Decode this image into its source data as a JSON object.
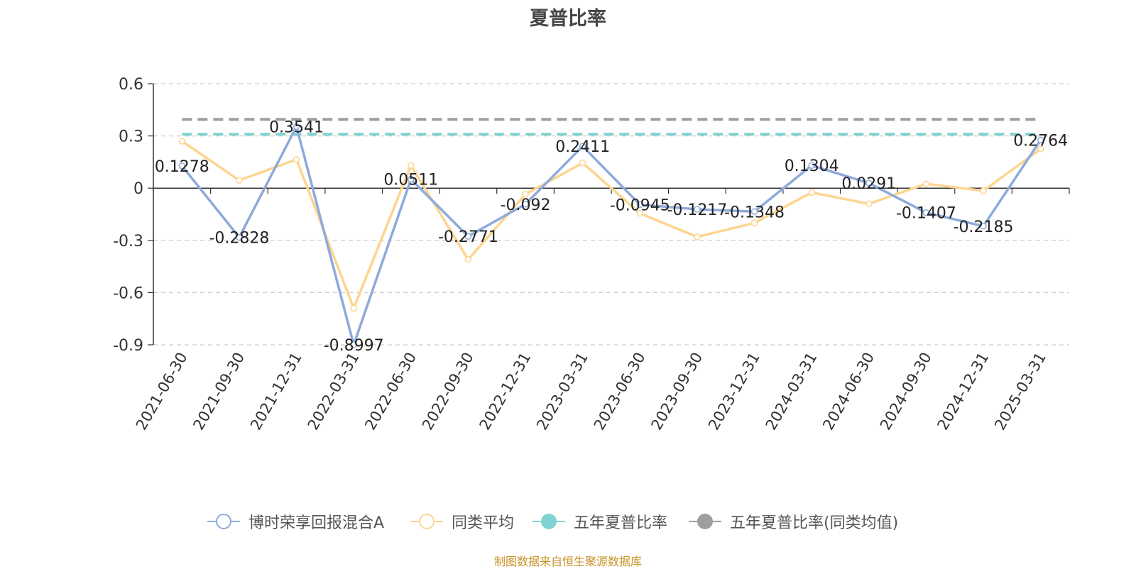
{
  "title": "夏普比率",
  "source": "制图数据来自恒生聚源数据库",
  "legend": [
    {
      "label": "博时荣享回报混合A",
      "color": "#8eaadb",
      "marker": "hollow-circle"
    },
    {
      "label": "同类平均",
      "color": "#fdd58f",
      "marker": "hollow-circle"
    },
    {
      "label": "五年夏普比率",
      "color": "#7fd3d3",
      "marker": "filled-circle"
    },
    {
      "label": "五年夏普比率(同类均值)",
      "color": "#9e9e9e",
      "marker": "filled-circle"
    }
  ],
  "chart_data": {
    "type": "line",
    "title": "夏普比率",
    "categories": [
      "2021-06-30",
      "2021-09-30",
      "2021-12-31",
      "2022-03-31",
      "2022-06-30",
      "2022-09-30",
      "2022-12-31",
      "2023-03-31",
      "2023-06-30",
      "2023-09-30",
      "2023-12-31",
      "2024-03-31",
      "2024-06-30",
      "2024-09-30",
      "2024-12-31",
      "2025-03-31"
    ],
    "ylim": [
      -0.9,
      0.6
    ],
    "yticks": [
      "0.6",
      "0.3",
      "0",
      "-0.3",
      "-0.6",
      "-0.9"
    ],
    "ytick_values": [
      0.6,
      0.3,
      0,
      -0.3,
      -0.6,
      -0.9
    ],
    "grid": true,
    "legend_position": "bottom",
    "series": [
      {
        "name": "博时荣享回报混合A",
        "color": "#8eaadb",
        "values": [
          0.1278,
          -0.2828,
          0.3541,
          -0.8997,
          0.0511,
          -0.2771,
          -0.092,
          0.2411,
          -0.0945,
          -0.1217,
          -0.1348,
          0.1304,
          0.0291,
          -0.1407,
          -0.2185,
          0.2764
        ],
        "labels": [
          "0.1278",
          "-0.2828",
          "0.3541",
          "-0.8997",
          "0.0511",
          "-0.2771",
          "-0.092",
          "0.2411",
          "-0.0945",
          "-0.1217",
          "-0.1348",
          "0.1304",
          "0.0291",
          "-0.1407",
          "-0.2185",
          "0.2764"
        ]
      },
      {
        "name": "同类平均",
        "color": "#fdd58f",
        "values": [
          0.27,
          0.045,
          0.165,
          -0.69,
          0.13,
          -0.41,
          -0.035,
          0.145,
          -0.145,
          -0.28,
          -0.2,
          -0.025,
          -0.09,
          0.025,
          -0.015,
          0.225
        ]
      }
    ],
    "reference_lines": [
      {
        "name": "五年夏普比率",
        "color": "#7fd3d3",
        "value": 0.31
      },
      {
        "name": "五年夏普比率(同类均值)",
        "color": "#9e9e9e",
        "value": 0.395
      }
    ]
  }
}
